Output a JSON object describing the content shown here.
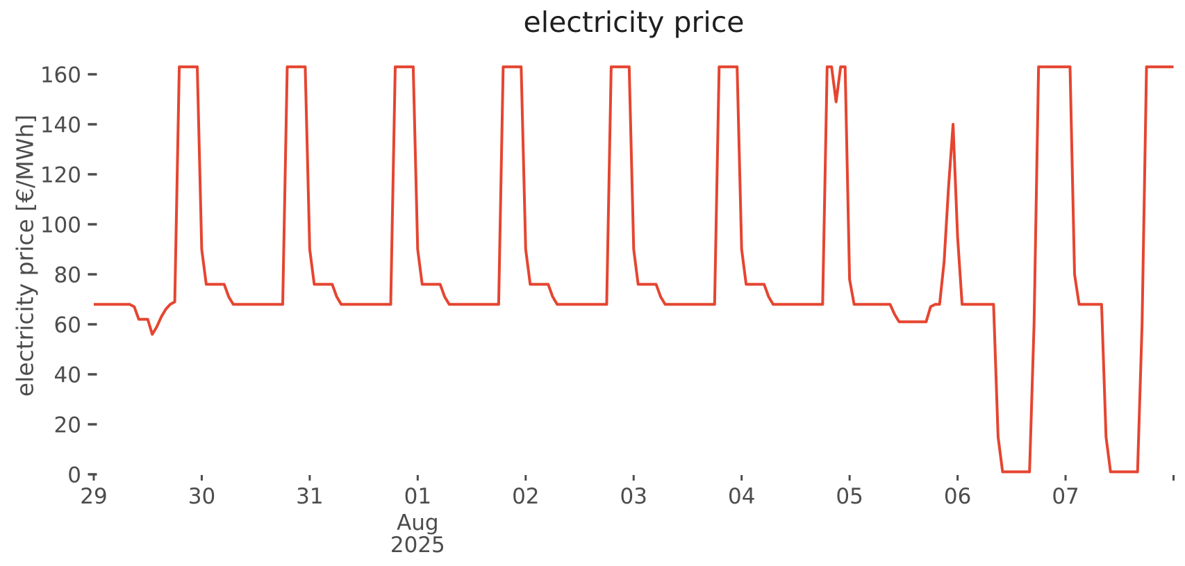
{
  "title": "electricity price",
  "axes": {
    "y_label": "electricity price [€/MWh]",
    "y_ticks": [
      0,
      20,
      40,
      60,
      80,
      100,
      120,
      140,
      160
    ],
    "x_ticks": [
      {
        "label": "29",
        "day": 0
      },
      {
        "label": "30",
        "day": 1
      },
      {
        "label": "31",
        "day": 2
      },
      {
        "label": "01",
        "day": 3,
        "sublabel": [
          "Aug",
          "2025"
        ]
      },
      {
        "label": "02",
        "day": 4
      },
      {
        "label": "03",
        "day": 5
      },
      {
        "label": "04",
        "day": 6
      },
      {
        "label": "05",
        "day": 7
      },
      {
        "label": "06",
        "day": 8
      },
      {
        "label": "07",
        "day": 9
      },
      {
        "label": "",
        "day": 10
      }
    ]
  },
  "colors": {
    "line": "#e54530",
    "tick_text": "#4c4c4c",
    "title_text": "#1f1f1f",
    "background": "#ffffff"
  },
  "chart_data": {
    "type": "line",
    "title": "electricity price",
    "xlabel": "",
    "ylabel": "electricity price [€/MWh]",
    "ylim": [
      0,
      165
    ],
    "grid": false,
    "legend": "none",
    "x_start": "2025-07-29T00:00",
    "x_end": "2025-08-08T00:00",
    "frequency": "hourly",
    "unit": "EUR/MWh",
    "days": [
      {
        "date": "2025-07-29",
        "hours": [
          68,
          68,
          68,
          68,
          68,
          68,
          68,
          68,
          68,
          67,
          62,
          62,
          62,
          56,
          59,
          63,
          66,
          68,
          69,
          163,
          163,
          163,
          163,
          163
        ]
      },
      {
        "date": "2025-07-30",
        "hours": [
          90,
          76,
          76,
          76,
          76,
          76,
          71,
          68,
          68,
          68,
          68,
          68,
          68,
          68,
          68,
          68,
          68,
          68,
          68,
          163,
          163,
          163,
          163,
          163
        ]
      },
      {
        "date": "2025-07-31",
        "hours": [
          90,
          76,
          76,
          76,
          76,
          76,
          71,
          68,
          68,
          68,
          68,
          68,
          68,
          68,
          68,
          68,
          68,
          68,
          68,
          163,
          163,
          163,
          163,
          163
        ]
      },
      {
        "date": "2025-08-01",
        "hours": [
          90,
          76,
          76,
          76,
          76,
          76,
          71,
          68,
          68,
          68,
          68,
          68,
          68,
          68,
          68,
          68,
          68,
          68,
          68,
          163,
          163,
          163,
          163,
          163
        ]
      },
      {
        "date": "2025-08-02",
        "hours": [
          90,
          76,
          76,
          76,
          76,
          76,
          71,
          68,
          68,
          68,
          68,
          68,
          68,
          68,
          68,
          68,
          68,
          68,
          68,
          163,
          163,
          163,
          163,
          163
        ]
      },
      {
        "date": "2025-08-03",
        "hours": [
          90,
          76,
          76,
          76,
          76,
          76,
          71,
          68,
          68,
          68,
          68,
          68,
          68,
          68,
          68,
          68,
          68,
          68,
          68,
          163,
          163,
          163,
          163,
          163
        ]
      },
      {
        "date": "2025-08-04",
        "hours": [
          90,
          76,
          76,
          76,
          76,
          76,
          71,
          68,
          68,
          68,
          68,
          68,
          68,
          68,
          68,
          68,
          68,
          68,
          68,
          163,
          163,
          149,
          163,
          163
        ]
      },
      {
        "date": "2025-08-05",
        "hours": [
          78,
          68,
          68,
          68,
          68,
          68,
          68,
          68,
          68,
          68,
          64,
          61,
          61,
          61,
          61,
          61,
          61,
          61,
          67,
          68,
          68,
          85,
          115,
          140
        ]
      },
      {
        "date": "2025-08-06",
        "hours": [
          95,
          68,
          68,
          68,
          68,
          68,
          68,
          68,
          68,
          15,
          1,
          1,
          1,
          1,
          1,
          1,
          1,
          60,
          163,
          163,
          163,
          163,
          163,
          163
        ]
      },
      {
        "date": "2025-08-07",
        "hours": [
          163,
          163,
          80,
          68,
          68,
          68,
          68,
          68,
          68,
          15,
          1,
          1,
          1,
          1,
          1,
          1,
          1,
          60,
          163,
          163,
          163,
          163,
          163,
          163
        ]
      }
    ],
    "end_point": {
      "date": "2025-08-08T00:00",
      "value": 163
    }
  }
}
